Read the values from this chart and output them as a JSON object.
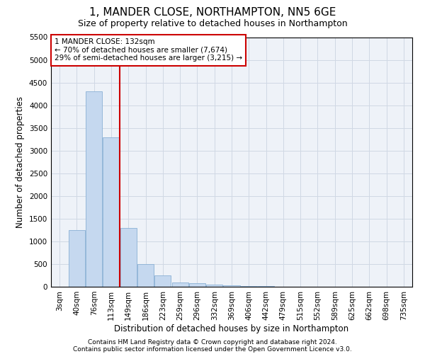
{
  "title": "1, MANDER CLOSE, NORTHAMPTON, NN5 6GE",
  "subtitle": "Size of property relative to detached houses in Northampton",
  "xlabel": "Distribution of detached houses by size in Northampton",
  "ylabel": "Number of detached properties",
  "footnote1": "Contains HM Land Registry data © Crown copyright and database right 2024.",
  "footnote2": "Contains public sector information licensed under the Open Government Licence v3.0.",
  "bar_labels": [
    "3sqm",
    "40sqm",
    "76sqm",
    "113sqm",
    "149sqm",
    "186sqm",
    "223sqm",
    "259sqm",
    "296sqm",
    "332sqm",
    "369sqm",
    "406sqm",
    "442sqm",
    "479sqm",
    "515sqm",
    "552sqm",
    "589sqm",
    "625sqm",
    "662sqm",
    "698sqm",
    "735sqm"
  ],
  "bar_values": [
    0,
    1250,
    4300,
    3300,
    1300,
    500,
    250,
    100,
    75,
    50,
    30,
    20,
    10,
    5,
    3,
    2,
    1,
    0,
    0,
    0,
    0
  ],
  "bar_color": "#c5d8ef",
  "bar_edge_color": "#8ab0d4",
  "red_line_index": 3.5,
  "annotation_text": "1 MANDER CLOSE: 132sqm\n← 70% of detached houses are smaller (7,674)\n29% of semi-detached houses are larger (3,215) →",
  "annotation_box_color": "white",
  "annotation_box_edge_color": "#cc0000",
  "red_line_color": "#cc0000",
  "ylim": [
    0,
    5500
  ],
  "yticks": [
    0,
    500,
    1000,
    1500,
    2000,
    2500,
    3000,
    3500,
    4000,
    4500,
    5000,
    5500
  ],
  "grid_color": "#d0d8e4",
  "bg_color": "#eef2f8",
  "fig_bg_color": "#ffffff",
  "title_fontsize": 11,
  "subtitle_fontsize": 9,
  "xlabel_fontsize": 8.5,
  "ylabel_fontsize": 8.5,
  "tick_fontsize": 7.5,
  "annotation_fontsize": 7.5,
  "footnote_fontsize": 6.5
}
